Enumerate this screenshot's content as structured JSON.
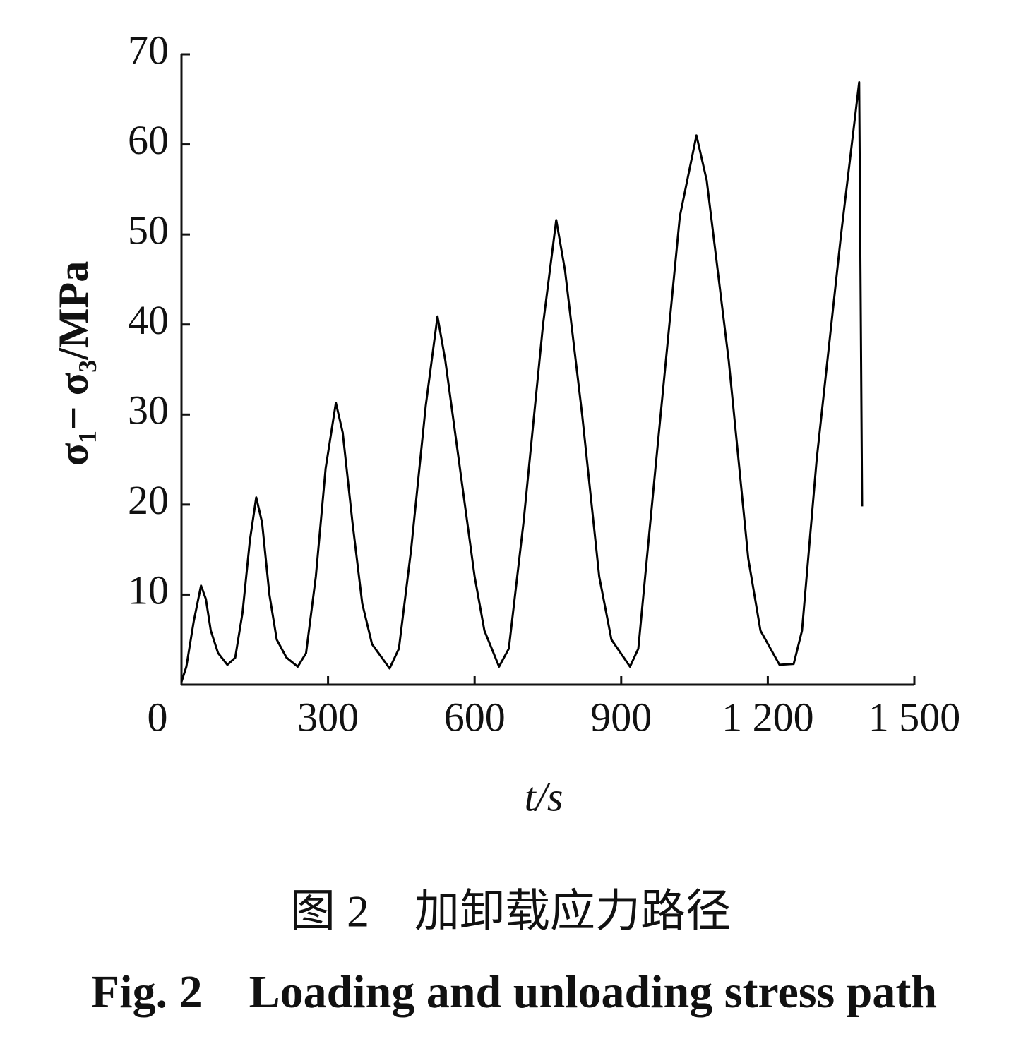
{
  "chart_data": {
    "type": "line",
    "ylabel": "σ₁− σ₃/MPa",
    "xlabel": "t/s",
    "caption_cn": "图 2　加卸载应力路径",
    "caption_en": "Fig. 2　Loading and unloading stress path",
    "xlim": [
      0,
      1500
    ],
    "ylim": [
      0,
      70
    ],
    "xticks": [
      0,
      300,
      600,
      900,
      {
        "value": 1200,
        "label": "1 200"
      },
      {
        "value": 1500,
        "label": "1 500"
      }
    ],
    "yticks": [
      10,
      20,
      30,
      40,
      50,
      60,
      70
    ],
    "series": [
      {
        "color": "#000000",
        "x": [
          0,
          10,
          25,
          40,
          50,
          60,
          75,
          94,
          110,
          125,
          140,
          153,
          165,
          180,
          195,
          215,
          238,
          255,
          275,
          295,
          316,
          330,
          350,
          370,
          390,
          426,
          445,
          470,
          500,
          524,
          540,
          570,
          600,
          620,
          650,
          670,
          700,
          740,
          767,
          785,
          820,
          855,
          880,
          918,
          935,
          970,
          1020,
          1054,
          1075,
          1120,
          1160,
          1185,
          1224,
          1253,
          1270,
          1300,
          1350,
          1387,
          1393
        ],
        "values": [
          0.3,
          2,
          7,
          11,
          9.5,
          6,
          3.5,
          2.2,
          3,
          8,
          16,
          20.8,
          18,
          10,
          5,
          3,
          2,
          3.5,
          12,
          24,
          31.3,
          28,
          18,
          9,
          4.5,
          1.8,
          4,
          15,
          31,
          40.9,
          36,
          24,
          12,
          6,
          2,
          4,
          18,
          40,
          51.6,
          46,
          30,
          12,
          5,
          2,
          4,
          24,
          52,
          61,
          56,
          36,
          14,
          6,
          2.2,
          2.3,
          6,
          25,
          50,
          66.9,
          19.8
        ]
      }
    ]
  }
}
